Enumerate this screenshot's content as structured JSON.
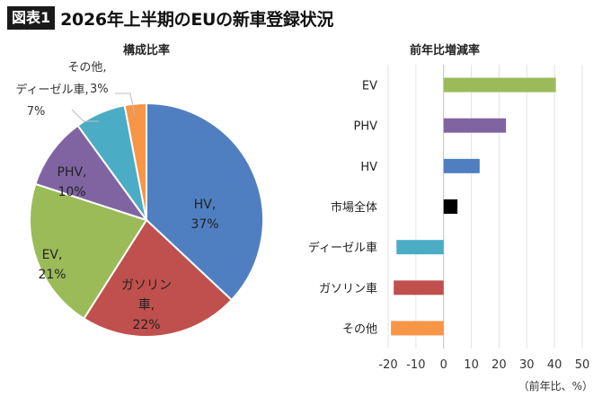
{
  "header": {
    "badge": "図表1",
    "title": "2026年上半期のEUの新車登録状況"
  },
  "note": "（前年比、%）",
  "chart_data": [
    {
      "type": "pie",
      "title": "構成比率",
      "start_angle_deg": 0,
      "direction": "clockwise",
      "slices": [
        {
          "name": "HV",
          "value": 37,
          "color": "#4f7fc1",
          "label_lines": [
            "HV,",
            "37%"
          ]
        },
        {
          "name": "ガソリン車",
          "value": 22,
          "color": "#c0504d",
          "label_lines": [
            "ガソリン",
            "車,",
            "22%"
          ]
        },
        {
          "name": "EV",
          "value": 21,
          "color": "#9bbb59",
          "label_lines": [
            "EV,",
            "21%"
          ]
        },
        {
          "name": "PHV",
          "value": 10,
          "color": "#8064a2",
          "label_lines": [
            "PHV,",
            "10%"
          ]
        },
        {
          "name": "ディーゼル車",
          "value": 7,
          "color": "#4bacc6",
          "label_lines": [
            "ディーゼル車,",
            "7%"
          ]
        },
        {
          "name": "その他",
          "value": 3,
          "color": "#f79646",
          "label_lines": [
            "その他,",
            "3%"
          ]
        }
      ]
    },
    {
      "type": "bar",
      "orientation": "horizontal",
      "title": "前年比増減率",
      "categories": [
        "EV",
        "PHV",
        "HV",
        "市場全体",
        "ディーゼル車",
        "ガソリン車",
        "その他"
      ],
      "values": [
        40.5,
        22.5,
        13,
        5,
        -17,
        -18,
        -19
      ],
      "colors": [
        "#9bbb59",
        "#8064a2",
        "#4f7fc1",
        "#000000",
        "#4bacc6",
        "#c0504d",
        "#f79646"
      ],
      "xlim": [
        -20,
        50
      ],
      "xticks": [
        -20,
        -10,
        0,
        10,
        20,
        30,
        40,
        50
      ],
      "grid": true
    }
  ]
}
